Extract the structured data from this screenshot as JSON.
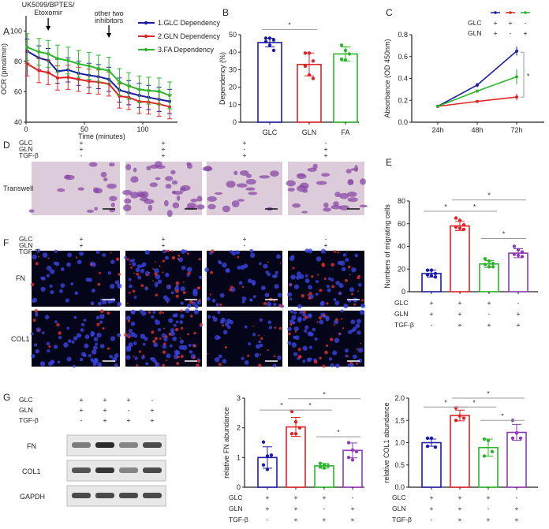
{
  "colors": {
    "glc": "#1c1ca8",
    "gln": "#e02424",
    "fa": "#2db52d",
    "purple": "#8b3cb3",
    "axis": "#222222",
    "sig": "#999999"
  },
  "panels": {
    "A": "A",
    "B": "B",
    "C": "C",
    "D": "D",
    "E": "E",
    "F": "F",
    "G": "G"
  },
  "conditions": {
    "labels": [
      "GLC",
      "GLN",
      "TGF-β"
    ],
    "values": [
      [
        "+",
        "+",
        "-"
      ],
      [
        "+",
        "+",
        "+"
      ],
      [
        "+",
        "-",
        "+"
      ],
      [
        "-",
        "+",
        "+"
      ]
    ]
  },
  "images": {
    "transwell_label": "Transwell",
    "fn_label": "FN",
    "col1_label": "COL1"
  },
  "blot": {
    "rows": [
      "FN",
      "COL1",
      "GAPDH"
    ]
  },
  "chart_data": [
    {
      "id": "A",
      "type": "line",
      "xlabel": "Time (minutes)",
      "ylabel": "OCR (pmol/min)",
      "xlim": [
        0,
        130
      ],
      "ylim": [
        40,
        110
      ],
      "xticks": [
        0,
        50,
        100
      ],
      "yticks": [
        40,
        60,
        80,
        100
      ],
      "annotations": [
        {
          "text1": "UK5099/BPTES/",
          "text2": "Etoxomir",
          "x": 19
        },
        {
          "text1": "other two",
          "text2": "inhibitors",
          "x": 71
        }
      ],
      "x": [
        1,
        11,
        19,
        27,
        36,
        45,
        54,
        62,
        71,
        80,
        88,
        97,
        105,
        114,
        123
      ],
      "legend_position": "top-right",
      "series": [
        {
          "name": "1.GLC Dependency",
          "color_key": "glc",
          "values": [
            93,
            88,
            86,
            78,
            79,
            76.5,
            75,
            74,
            72,
            64,
            62,
            60,
            58.5,
            57,
            55.5
          ],
          "error": 9
        },
        {
          "name": "2.GLN Dependency",
          "color_key": "gln",
          "values": [
            83.5,
            78.5,
            77,
            73,
            73.5,
            72,
            70.5,
            70,
            68.5,
            59.5,
            58.5,
            55.5,
            55,
            53.5,
            51.5
          ],
          "error": 9
        },
        {
          "name": "3.FA Dependency",
          "color_key": "fa",
          "values": [
            96,
            92.5,
            91,
            87.5,
            86,
            83.5,
            82,
            80,
            78.5,
            70,
            67,
            64.5,
            63.5,
            63,
            60
          ],
          "error": 10
        }
      ]
    },
    {
      "id": "B",
      "type": "bar",
      "ylabel": "Dependency (%)",
      "ylim": [
        0,
        50
      ],
      "yticks": [
        0,
        10,
        20,
        30,
        40,
        50
      ],
      "categories": [
        "GLC",
        "GLN",
        "FA"
      ],
      "color_keys": [
        "glc",
        "gln",
        "fa"
      ],
      "values": [
        45.5,
        33,
        39
      ],
      "error": [
        2.5,
        6.5,
        4
      ],
      "points": [
        [
          48,
          48,
          47,
          46,
          44,
          41
        ],
        [
          39.5,
          39.5,
          35,
          32,
          27,
          25
        ],
        [
          44,
          41,
          39,
          36,
          35.5
        ]
      ],
      "sig": [
        {
          "a": 0,
          "b": 1,
          "y": 53,
          "label": "*"
        }
      ]
    },
    {
      "id": "C",
      "type": "line",
      "ylabel": "Absorbance (OD 450nm)",
      "ylim": [
        0,
        0.8
      ],
      "yticks": [
        "0.0",
        "0.2",
        "0.4",
        "0.6",
        "0.8"
      ],
      "categories": [
        "24h",
        "48h",
        "72h"
      ],
      "legend": {
        "rows": [
          "GLC",
          "GLN"
        ],
        "entries": [
          [
            "+",
            "+"
          ],
          [
            "+",
            "-"
          ],
          [
            "-",
            "+"
          ]
        ]
      },
      "series": [
        {
          "color_key": "glc",
          "values": [
            0.145,
            0.34,
            0.65
          ],
          "error": [
            0.005,
            0.02,
            0.04
          ]
        },
        {
          "color_key": "gln",
          "values": [
            0.145,
            0.19,
            0.23
          ],
          "error": [
            0.005,
            0.01,
            0.03
          ]
        },
        {
          "color_key": "fa",
          "values": [
            0.145,
            0.285,
            0.415
          ],
          "error": [
            0.005,
            0.01,
            0.07
          ]
        }
      ],
      "sig_label": "*"
    },
    {
      "id": "E",
      "type": "bar",
      "ylabel": "Numbers of migrating cells",
      "ylim": [
        0,
        80
      ],
      "yticks": [
        0,
        20,
        40,
        60,
        80
      ],
      "color_keys": [
        "glc",
        "gln",
        "fa",
        "purple"
      ],
      "values": [
        16,
        58,
        24.5,
        34
      ],
      "error": [
        3,
        4,
        3,
        4
      ],
      "points": [
        [
          19,
          19,
          16,
          15,
          14,
          13
        ],
        [
          65,
          63,
          59,
          57,
          56,
          55
        ],
        [
          29,
          27,
          25,
          24,
          22,
          22
        ],
        [
          40,
          37,
          35,
          33,
          32,
          31
        ]
      ],
      "sig": [
        {
          "a": 0,
          "b": 1,
          "y": 71,
          "label": "*"
        },
        {
          "a": 1,
          "b": 2,
          "y": 71,
          "label": "*"
        },
        {
          "a": 1,
          "b": 3,
          "y": 81,
          "label": "*"
        },
        {
          "a": 2,
          "b": 3,
          "y": 47,
          "label": "*"
        }
      ]
    },
    {
      "id": "G-FN",
      "type": "bar",
      "ylabel": "relative FN abundance",
      "ylim": [
        0,
        3
      ],
      "yticks": [
        0,
        1,
        2,
        3
      ],
      "color_keys": [
        "glc",
        "gln",
        "fa",
        "purple"
      ],
      "values": [
        1.0,
        2.03,
        0.72,
        1.24
      ],
      "error": [
        0.36,
        0.32,
        0.08,
        0.25
      ],
      "points": [
        [
          1.52,
          1.05,
          1.08,
          0.75,
          0.6
        ],
        [
          2.55,
          2.2,
          2.0,
          1.8,
          1.8
        ],
        [
          0.8,
          0.75,
          0.72,
          0.68,
          0.65
        ],
        [
          1.5,
          1.25,
          1.2,
          1.0,
          0.92
        ]
      ],
      "sig": [
        {
          "a": 0,
          "b": 1,
          "y": 2.6,
          "label": "*"
        },
        {
          "a": 1,
          "b": 2,
          "y": 2.6,
          "label": "*"
        },
        {
          "a": 1,
          "b": 3,
          "y": 2.98,
          "label": "*"
        },
        {
          "a": 2,
          "b": 3,
          "y": 1.7,
          "label": "*"
        }
      ]
    },
    {
      "id": "G-COL1",
      "type": "bar",
      "ylabel": "relative COL1 abundance",
      "ylim": [
        0,
        2
      ],
      "yticks": [
        "0.0",
        "0.5",
        "1.0",
        "1.5",
        "2.0"
      ],
      "color_keys": [
        "glc",
        "gln",
        "fa",
        "purple"
      ],
      "values": [
        1.0,
        1.61,
        0.89,
        1.23
      ],
      "error": [
        0.08,
        0.12,
        0.19,
        0.18
      ],
      "points": [
        [
          1.1,
          1.1,
          0.9,
          0.92
        ],
        [
          1.78,
          1.6,
          1.55,
          1.5
        ],
        [
          1.08,
          1.05,
          0.8,
          0.7
        ],
        [
          1.5,
          1.22,
          1.1,
          1.1
        ]
      ],
      "sig": [
        {
          "a": 0,
          "b": 1,
          "y": 1.8,
          "label": "*"
        },
        {
          "a": 1,
          "b": 2,
          "y": 1.8,
          "label": "*"
        },
        {
          "a": 1,
          "b": 3,
          "y": 2.0,
          "label": "*"
        },
        {
          "a": 2,
          "b": 3,
          "y": 1.5,
          "label": "*"
        }
      ]
    }
  ]
}
